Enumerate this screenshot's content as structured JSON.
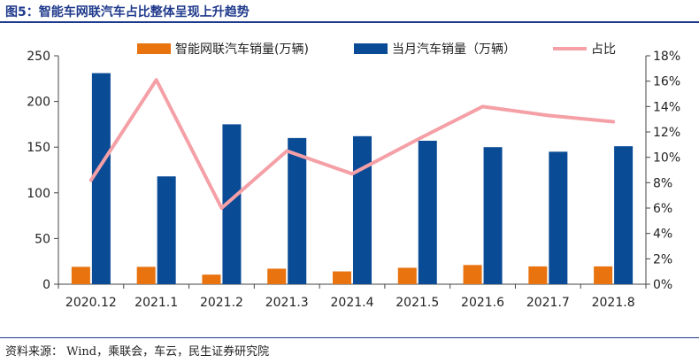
{
  "header": {
    "title": "图5：智能车网联汽车占比整体呈现上升趋势"
  },
  "footer": {
    "source": "资料来源： Wind，乘联会，车云，民生证券研究院"
  },
  "colors": {
    "bar1": "#e8730f",
    "bar2": "#0a4b96",
    "line": "#f4a0a6",
    "title": "#1f3a8c"
  },
  "chart_data": {
    "type": "bar",
    "categories": [
      "2020.12",
      "2021.1",
      "2021.2",
      "2021.3",
      "2021.4",
      "2021.5",
      "2021.6",
      "2021.7",
      "2021.8"
    ],
    "series": [
      {
        "name": "智能网联汽车销量(万辆)",
        "type": "bar",
        "axis": "left",
        "color": "#e8730f",
        "values": [
          19,
          19,
          10.5,
          17,
          14,
          18,
          21,
          19.5,
          19.5
        ]
      },
      {
        "name": "当月汽车销量（万辆）",
        "type": "bar",
        "axis": "left",
        "color": "#0a4b96",
        "values": [
          231,
          118,
          175,
          160,
          162,
          157,
          150,
          145,
          151
        ]
      },
      {
        "name": "占比",
        "type": "line",
        "axis": "right",
        "color": "#f4a0a6",
        "values": [
          8.2,
          16.1,
          6.0,
          10.5,
          8.7,
          11.4,
          14.0,
          13.3,
          12.8
        ]
      }
    ],
    "ylim_left": [
      0,
      250
    ],
    "yticks_left": [
      "0",
      "50",
      "100",
      "150",
      "200",
      "250"
    ],
    "ylim_right": [
      0,
      18
    ],
    "yticks_right": [
      "0%",
      "2%",
      "4%",
      "6%",
      "8%",
      "10%",
      "12%",
      "14%",
      "16%",
      "18%"
    ],
    "grid": false,
    "legend_position": "top"
  }
}
